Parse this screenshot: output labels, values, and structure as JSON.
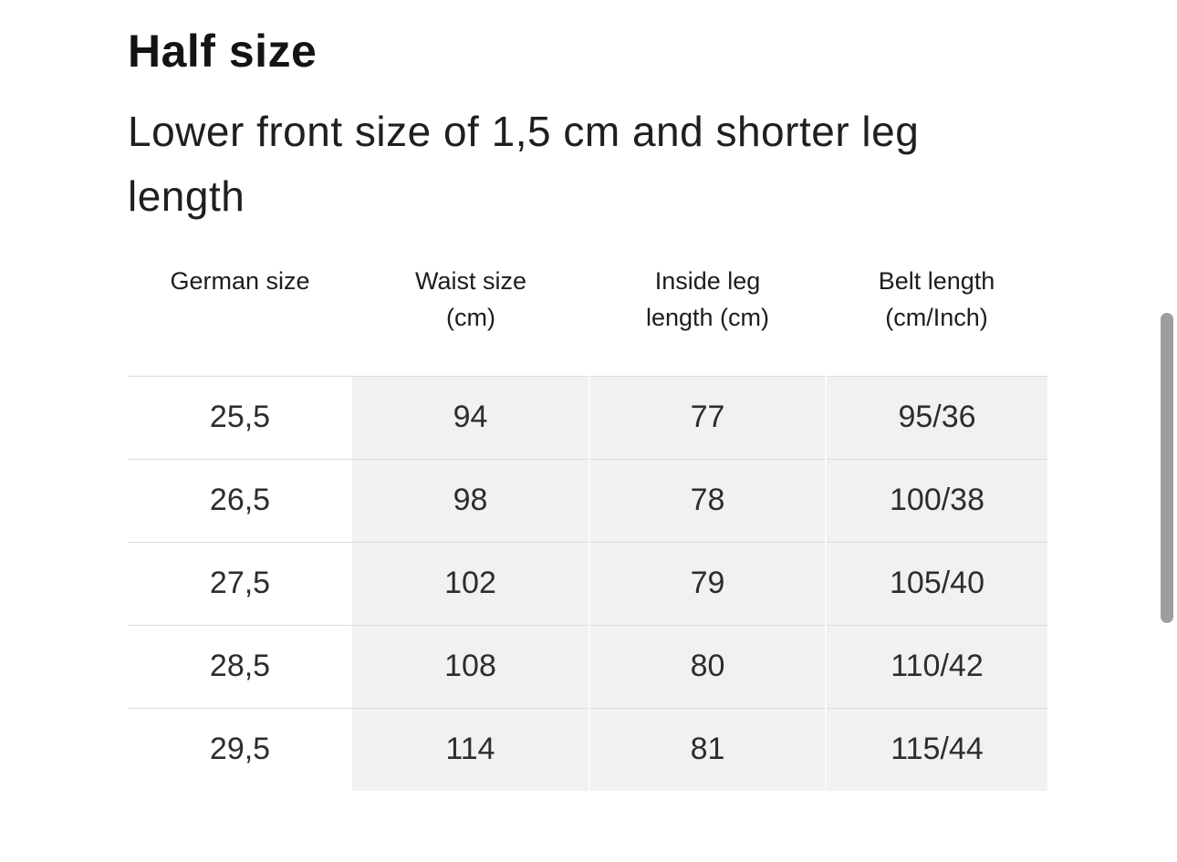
{
  "header": {
    "title": "Half size",
    "subtitle_lines": [
      "Lower front size of 1,5 cm and shorter leg",
      "length"
    ]
  },
  "table": {
    "column_headers": [
      {
        "lines": [
          "German size"
        ]
      },
      {
        "lines": [
          "Waist size",
          "(cm)"
        ]
      },
      {
        "lines": [
          "Inside leg",
          "length (cm)"
        ]
      },
      {
        "lines": [
          "Belt length",
          "(cm/Inch)"
        ]
      }
    ],
    "rows": [
      [
        "25,5",
        "94",
        "77",
        "95/36"
      ],
      [
        "26,5",
        "98",
        "78",
        "100/38"
      ],
      [
        "27,5",
        "102",
        "79",
        "105/40"
      ],
      [
        "28,5",
        "108",
        "80",
        "110/42"
      ],
      [
        "29,5",
        "114",
        "81",
        "115/44"
      ]
    ]
  },
  "scrollbar": {
    "thumb_color": "#9e9e9e"
  },
  "colors": {
    "page_bg": "#ffffff",
    "stripe_bg": "#f1f1f1",
    "divider": "#dbdbdb",
    "column_gap_line": "#fafafa",
    "title_text": "#141414",
    "body_text": "#2d2d2d"
  }
}
